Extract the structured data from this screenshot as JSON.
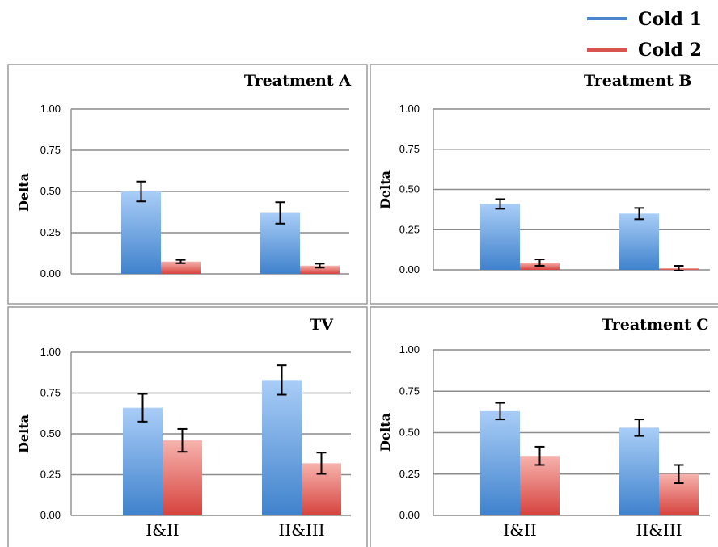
{
  "legend": [
    {
      "label": "Cold 1",
      "color": "#4a86d0"
    },
    {
      "label": "Cold 2",
      "color": "#d9544f"
    }
  ],
  "chart_data": [
    {
      "type": "bar",
      "title": "Treatment A",
      "ylabel": "Delta",
      "categories": [
        "I&II",
        "II&III"
      ],
      "show_categories": false,
      "yticks": [
        "1.00",
        "0.75",
        "0.50",
        "0.25",
        "0.00"
      ],
      "ylim": [
        0,
        1
      ],
      "grid": true,
      "series": [
        {
          "name": "Cold 1",
          "values": [
            0.5,
            0.37
          ],
          "errors": [
            0.06,
            0.065
          ]
        },
        {
          "name": "Cold 2",
          "values": [
            0.075,
            0.05
          ],
          "errors": [
            0.01,
            0.012
          ]
        }
      ]
    },
    {
      "type": "bar",
      "title": "Treatment B",
      "ylabel": "Delta",
      "categories": [
        "I&II",
        "II&III"
      ],
      "show_categories": false,
      "yticks": [
        "1.00",
        "0.75",
        "0.50",
        "0.25",
        "0.00"
      ],
      "ylim": [
        0,
        1
      ],
      "grid": true,
      "series": [
        {
          "name": "Cold 1",
          "values": [
            0.41,
            0.35
          ],
          "errors": [
            0.03,
            0.035
          ]
        },
        {
          "name": "Cold 2",
          "values": [
            0.045,
            0.01
          ],
          "errors": [
            0.02,
            0.015
          ]
        }
      ]
    },
    {
      "type": "bar",
      "title": "TV",
      "ylabel": "Delta",
      "categories": [
        "I&II",
        "II&III"
      ],
      "show_categories": true,
      "yticks": [
        "1.00",
        "0.75",
        "0.50",
        "0.25",
        "0.00"
      ],
      "ylim": [
        0,
        1
      ],
      "grid": true,
      "series": [
        {
          "name": "Cold 1",
          "values": [
            0.66,
            0.83
          ],
          "errors": [
            0.085,
            0.09
          ]
        },
        {
          "name": "Cold 2",
          "values": [
            0.46,
            0.32
          ],
          "errors": [
            0.07,
            0.065
          ]
        }
      ]
    },
    {
      "type": "bar",
      "title": "Treatment C",
      "ylabel": "Delta",
      "categories": [
        "I&II",
        "II&III"
      ],
      "show_categories": true,
      "yticks": [
        "1.00",
        "0.75",
        "0.50",
        "0.25",
        "0.00"
      ],
      "ylim": [
        0,
        1
      ],
      "grid": true,
      "series": [
        {
          "name": "Cold 1",
          "values": [
            0.63,
            0.53
          ],
          "errors": [
            0.05,
            0.05
          ]
        },
        {
          "name": "Cold 2",
          "values": [
            0.36,
            0.25
          ],
          "errors": [
            0.055,
            0.055
          ]
        }
      ]
    }
  ]
}
